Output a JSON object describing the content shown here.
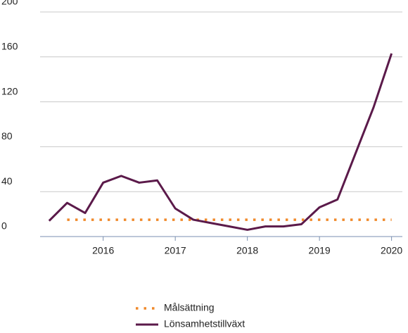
{
  "chart_data": {
    "type": "line",
    "x": [
      2015.25,
      2015.5,
      2015.75,
      2016,
      2016.25,
      2016.5,
      2016.75,
      2017,
      2017.25,
      2017.5,
      2017.75,
      2018,
      2018.25,
      2018.5,
      2018.75,
      2019,
      2019.25,
      2019.5,
      2019.75,
      2020
    ],
    "series": [
      {
        "name": "Målsättning",
        "color": "#f0892a",
        "dotted": true,
        "values": [
          null,
          15,
          15,
          15,
          15,
          15,
          15,
          15,
          15,
          15,
          15,
          15,
          15,
          15,
          15,
          15,
          15,
          15,
          15,
          15
        ]
      },
      {
        "name": "Lönsamhetstillväxt",
        "color": "#5b1a4a",
        "dotted": false,
        "values": [
          14,
          30,
          21,
          48,
          54,
          48,
          50,
          25,
          15,
          12,
          9,
          6,
          9,
          9,
          11,
          26,
          33,
          74,
          115,
          163
        ]
      }
    ],
    "xlim": [
      2015.125,
      2020.15
    ],
    "xticks": [
      2016,
      2017,
      2018,
      2019,
      2020
    ],
    "ylim": [
      0,
      200
    ],
    "yticks": [
      0,
      40,
      80,
      120,
      160,
      200
    ],
    "grid": true,
    "legend": "bottom"
  }
}
